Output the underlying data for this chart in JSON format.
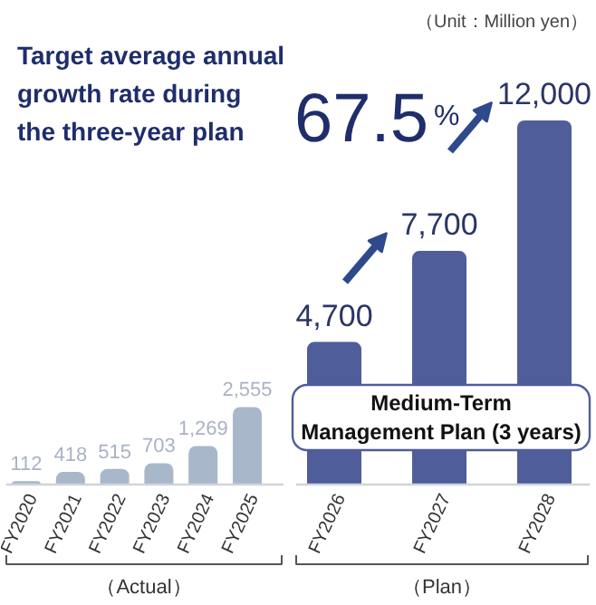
{
  "chart_data": [
    {
      "type": "bar",
      "title": "Target average annual growth rate during the three-year plan",
      "xlabel": "（Actual）",
      "categories": [
        "FY2020",
        "FY2021",
        "FY2022",
        "FY2023",
        "FY2024",
        "FY2025"
      ],
      "values": [
        112,
        418,
        515,
        703,
        1269,
        2555
      ],
      "colors": [
        "#a9b7cb",
        "#a9b7cb",
        "#a9b7cb",
        "#a9b7cb",
        "#a9b7cb",
        "#a9b7cb"
      ],
      "value_labels": [
        "112",
        "418",
        "515",
        "703",
        "1,269",
        "2,555"
      ]
    },
    {
      "type": "bar",
      "xlabel": "（Plan）",
      "categories": [
        "FY2026",
        "FY2027",
        "FY2028"
      ],
      "values": [
        4700,
        7700,
        12000
      ],
      "colors": [
        "#4f5d9b",
        "#4f5d9b",
        "#4f5d9b"
      ],
      "value_labels": [
        "4,700",
        "7,700",
        "12,000"
      ],
      "annotations": [
        "（Unit：Million yen）",
        "67.5%",
        "Medium-Term Management Plan (3 years)"
      ]
    }
  ]
}
